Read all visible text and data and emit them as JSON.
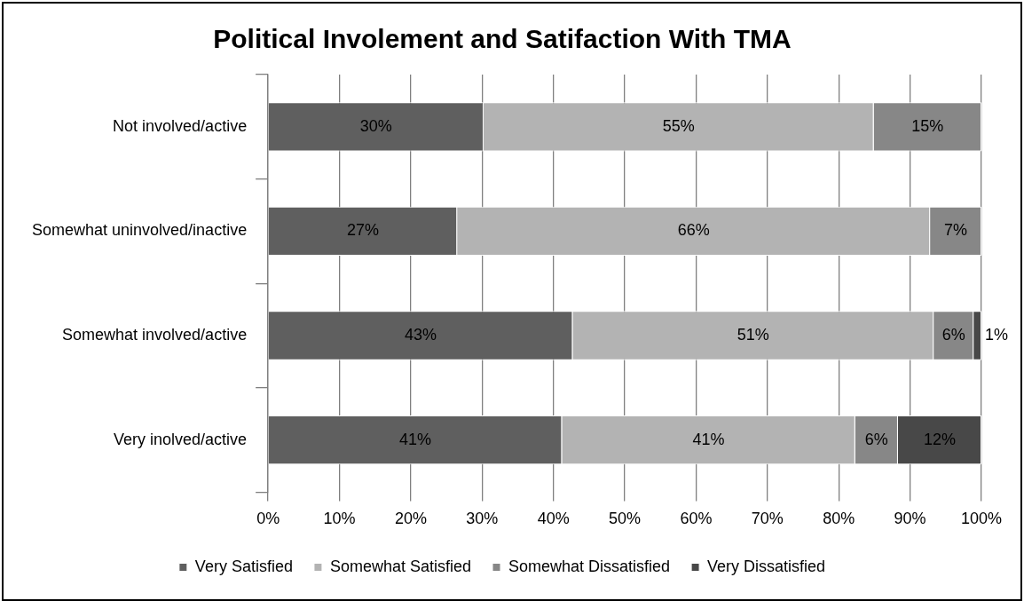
{
  "chart_data": {
    "type": "bar",
    "title": "Political Involement and Satifaction With TMA",
    "orientation": "horizontal",
    "stacked": true,
    "categories": [
      "Not involved/active",
      "Somewhat uninvolved/inactive",
      "Somewhat involved/active",
      "Very inolved/active"
    ],
    "series": [
      {
        "name": "Very Satisfied",
        "color": "#5f5f5f",
        "values": [
          30.2,
          26.5,
          42.7,
          41.2
        ],
        "value_labels": [
          "30%",
          "27%",
          "43%",
          "41%"
        ]
      },
      {
        "name": "Somewhat Satisfied",
        "color": "#b3b3b3",
        "values": [
          54.7,
          66.3,
          50.6,
          41.1
        ],
        "value_labels": [
          "55%",
          "66%",
          "51%",
          "41%"
        ]
      },
      {
        "name": "Somewhat Dissatisfied",
        "color": "#878787",
        "values": [
          15.1,
          7.2,
          5.6,
          6.0
        ],
        "value_labels": [
          "15%",
          "7%",
          "6%",
          "6%"
        ]
      },
      {
        "name": "Very Dissatisfied",
        "color": "#484848",
        "values": [
          null,
          null,
          1.1,
          11.7
        ],
        "value_labels": [
          null,
          null,
          "1%",
          "12%"
        ]
      }
    ],
    "xlim": [
      0,
      100
    ],
    "xticks": [
      {
        "value": 0,
        "label": "0%"
      },
      {
        "value": 10,
        "label": "10%"
      },
      {
        "value": 20,
        "label": "20%"
      },
      {
        "value": 30,
        "label": "30%"
      },
      {
        "value": 40,
        "label": "40%"
      },
      {
        "value": 50,
        "label": "50%"
      },
      {
        "value": 60,
        "label": "60%"
      },
      {
        "value": 70,
        "label": "70%"
      },
      {
        "value": 80,
        "label": "80%"
      },
      {
        "value": 90,
        "label": "90%"
      },
      {
        "value": 100,
        "label": "100%"
      }
    ],
    "grid": "x",
    "legend": "bottom"
  }
}
